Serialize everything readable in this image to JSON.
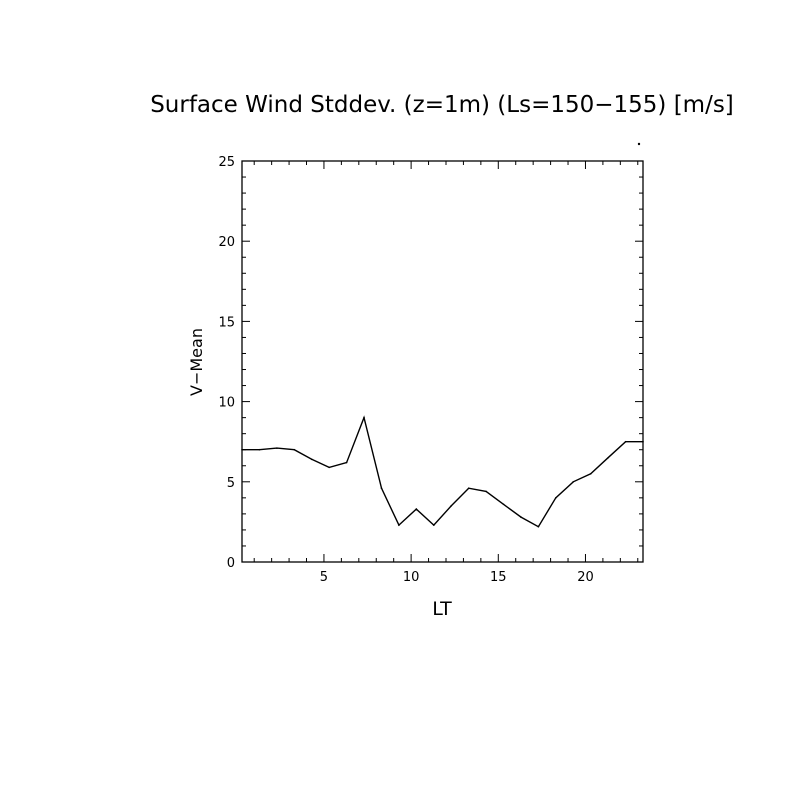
{
  "chart_data": {
    "type": "line",
    "title": "Surface Wind Stddev. (z=1m) (Ls=150−155) [m/s]",
    "xlabel": "LT",
    "ylabel": "V−Mean",
    "xlim": [
      0.3,
      23.3
    ],
    "ylim": [
      0,
      25
    ],
    "xticks": [
      5,
      10,
      15,
      20
    ],
    "yticks": [
      0,
      5,
      10,
      15,
      20,
      25
    ],
    "grid": false,
    "series": [
      {
        "x": [
          0.3,
          1.3,
          2.3,
          3.3,
          4.3,
          5.3,
          6.3,
          7.3,
          8.3,
          9.3,
          10.3,
          11.3,
          12.3,
          13.3,
          14.3,
          15.3,
          16.3,
          17.3,
          18.3,
          19.3,
          20.3,
          21.3,
          22.3,
          23.3
        ],
        "y": [
          7.0,
          7.0,
          7.1,
          7.0,
          6.4,
          5.9,
          6.2,
          9.0,
          4.6,
          2.3,
          3.3,
          2.3,
          3.5,
          4.6,
          4.4,
          3.6,
          2.8,
          2.2,
          4.0,
          5.0,
          5.5,
          6.5,
          7.5,
          7.5
        ]
      }
    ]
  }
}
